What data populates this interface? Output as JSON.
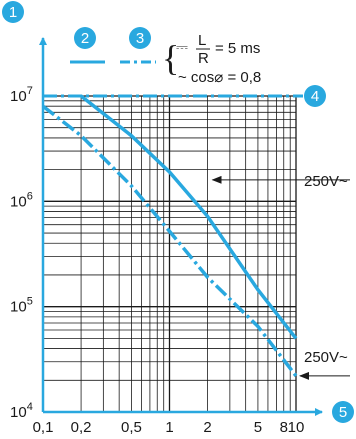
{
  "chart_data": {
    "type": "line",
    "x_scale": "log",
    "y_scale": "log",
    "x_ticks": [
      {
        "value": 0.1,
        "label": "0,1"
      },
      {
        "value": 0.2,
        "label": "0,2"
      },
      {
        "value": 0.5,
        "label": "0,5"
      },
      {
        "value": 1,
        "label": "1"
      },
      {
        "value": 2,
        "label": "2"
      },
      {
        "value": 5,
        "label": "5"
      },
      {
        "value": 8,
        "label": "8"
      },
      {
        "value": 10,
        "label": "10"
      }
    ],
    "y_ticks": [
      {
        "value": 10000,
        "base": "10",
        "exp": "4"
      },
      {
        "value": 100000,
        "base": "10",
        "exp": "5"
      },
      {
        "value": 1000000,
        "base": "10",
        "exp": "6"
      },
      {
        "value": 10000000,
        "base": "10",
        "exp": "7"
      }
    ],
    "xlim": [
      0.1,
      10
    ],
    "ylim": [
      10000,
      10000000
    ],
    "grid": true,
    "series": [
      {
        "marker": "2",
        "style": "solid",
        "color": "#29a8df",
        "points": [
          [
            0.2,
            10000000
          ],
          [
            0.5,
            4200000
          ],
          [
            1,
            1900000
          ],
          [
            2,
            720000
          ],
          [
            5,
            145000
          ],
          [
            10,
            50000
          ]
        ]
      },
      {
        "marker": "3",
        "style": "dash-dot",
        "color": "#29a8df",
        "points": [
          [
            0.1,
            8000000
          ],
          [
            0.2,
            4200000
          ],
          [
            0.5,
            1400000
          ],
          [
            1,
            520000
          ],
          [
            2,
            190000
          ],
          [
            5,
            65000
          ],
          [
            10,
            22000
          ]
        ]
      }
    ],
    "reference_line": {
      "marker": "4",
      "value": 10000000,
      "style": "dash-dot",
      "color": "#29a8df"
    },
    "legend": {
      "line1_prefix": "⎓",
      "fraction_num": "L",
      "fraction_den": "R",
      "line1_suffix": "= 5 ms",
      "line2": "~ cos⌀ = 0,8"
    },
    "annotations": [
      {
        "text": "250V~",
        "x": 2,
        "y": 1600000,
        "target_series": "2"
      },
      {
        "text": "250V~",
        "x": 10,
        "y": 22000,
        "target_series": "3"
      }
    ],
    "markers": {
      "y_axis": "1",
      "x_axis": "5"
    }
  }
}
